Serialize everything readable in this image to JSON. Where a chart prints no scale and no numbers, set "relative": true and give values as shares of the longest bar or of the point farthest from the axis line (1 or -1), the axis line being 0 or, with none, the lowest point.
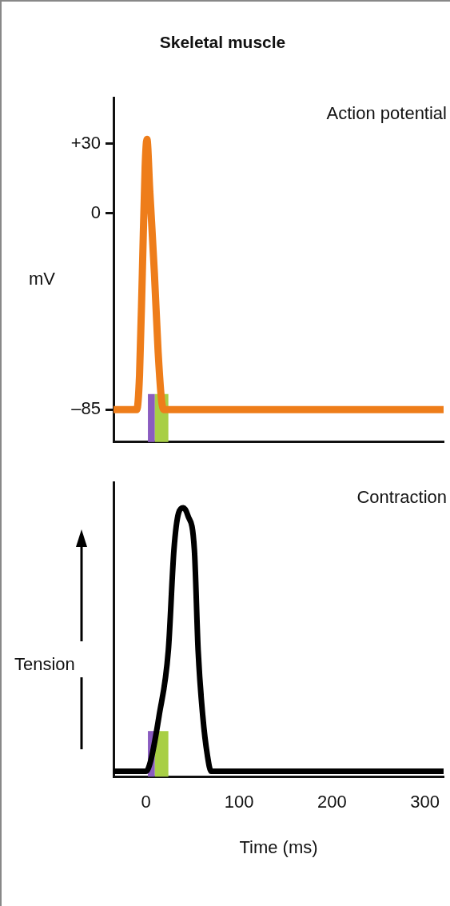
{
  "chart_data": [
    {
      "type": "line",
      "title": "Skeletal muscle",
      "ylabel": "mV",
      "annotations": [
        "Action potential"
      ],
      "x": [
        -35,
        -10,
        -7,
        -4,
        -1,
        1,
        4,
        9,
        13,
        17,
        20,
        320
      ],
      "series": [
        {
          "color": "#ee7d1a",
          "values": [
            -85,
            -85,
            -70,
            -26,
            20,
            32,
            10,
            -26,
            -60,
            -82,
            -85,
            -85
          ]
        }
      ],
      "xlim": [
        -35,
        320
      ],
      "ylim": [
        -99,
        50
      ],
      "yticks": [
        {
          "value": 30,
          "label": "+30"
        },
        0,
        {
          "value": -85,
          "label": "–85"
        }
      ],
      "tick_labels": "y",
      "grid": false,
      "legend": false,
      "marker": "none",
      "line_style": "solid",
      "bands": [
        {
          "axis": "x",
          "from": 2,
          "to": 9.5,
          "color": "#8a5cc0"
        },
        {
          "axis": "x",
          "from": 9.5,
          "to": 24,
          "color": "#a8cf45"
        }
      ]
    },
    {
      "type": "line",
      "relative": true,
      "xlabel": "Time (ms)",
      "ylabel": "Tension",
      "annotations": [
        "Contraction"
      ],
      "x": [
        -35,
        0,
        5,
        14,
        24,
        30,
        35,
        40,
        45,
        52,
        56,
        61,
        66,
        70,
        320
      ],
      "series": [
        {
          "color": "#000000",
          "values": [
            0,
            0,
            0.04,
            0.21,
            0.46,
            0.84,
            0.98,
            1,
            0.97,
            0.84,
            0.46,
            0.21,
            0.06,
            0,
            0
          ]
        }
      ],
      "xlim": [
        -35,
        320
      ],
      "xticks": [
        0,
        100,
        200,
        300
      ],
      "tick_labels": "x",
      "grid": false,
      "legend": false,
      "marker": "none",
      "line_style": "solid",
      "bands": [
        {
          "axis": "x",
          "from": 2,
          "to": 9.5,
          "color": "#8a5cc0"
        },
        {
          "axis": "x",
          "from": 9.5,
          "to": 24,
          "color": "#a8cf45"
        }
      ]
    }
  ]
}
